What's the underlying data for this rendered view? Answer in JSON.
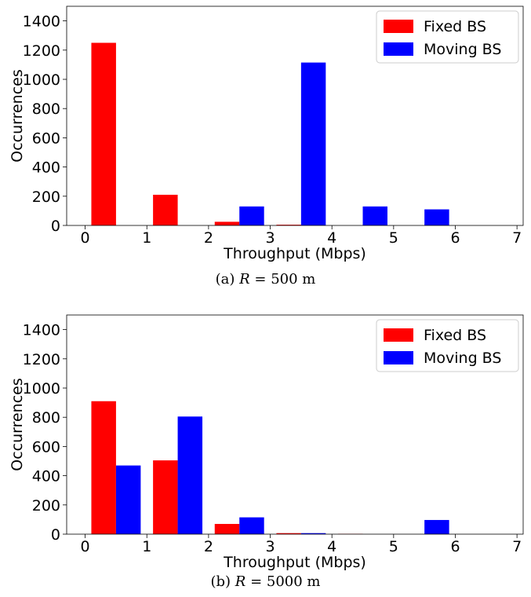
{
  "colors": {
    "fixed": "#ff0000",
    "moving": "#0000ff"
  },
  "chart_data": [
    {
      "type": "bar",
      "caption": {
        "prefix": "(a)",
        "var": "R",
        "rest": "= 500 m"
      },
      "xlabel": "Throughput (Mbps)",
      "ylabel": "Occurrences",
      "xlim": [
        -0.3,
        7.1
      ],
      "ylim": [
        0,
        1500
      ],
      "xticks": [
        0,
        1,
        2,
        3,
        4,
        5,
        6,
        7
      ],
      "yticks": [
        0,
        200,
        400,
        600,
        800,
        1000,
        1200,
        1400
      ],
      "legend": "top-right",
      "bin_width": 0.4,
      "series": [
        {
          "name": "Fixed BS",
          "x": [
            0.3,
            1.3,
            2.3,
            3.3
          ],
          "values": [
            1250,
            210,
            25,
            5
          ]
        },
        {
          "name": "Moving BS",
          "x": [
            2.7,
            3.7,
            4.7,
            5.7
          ],
          "values": [
            130,
            1115,
            130,
            110
          ]
        }
      ]
    },
    {
      "type": "bar",
      "caption": {
        "prefix": "(b)",
        "var": "R",
        "rest": "= 5000 m"
      },
      "xlabel": "Throughput (Mbps)",
      "ylabel": "Occurrences",
      "xlim": [
        -0.3,
        7.1
      ],
      "ylim": [
        0,
        1500
      ],
      "xticks": [
        0,
        1,
        2,
        3,
        4,
        5,
        6,
        7
      ],
      "yticks": [
        0,
        200,
        400,
        600,
        800,
        1000,
        1200,
        1400
      ],
      "legend": "top-right",
      "bin_width": 0.4,
      "series": [
        {
          "name": "Fixed BS",
          "x": [
            0.3,
            1.3,
            2.3,
            3.3,
            4.3
          ],
          "values": [
            910,
            505,
            70,
            7,
            2
          ]
        },
        {
          "name": "Moving BS",
          "x": [
            0.7,
            1.7,
            2.7,
            3.7,
            5.7
          ],
          "values": [
            470,
            805,
            115,
            7,
            97
          ]
        }
      ]
    }
  ]
}
